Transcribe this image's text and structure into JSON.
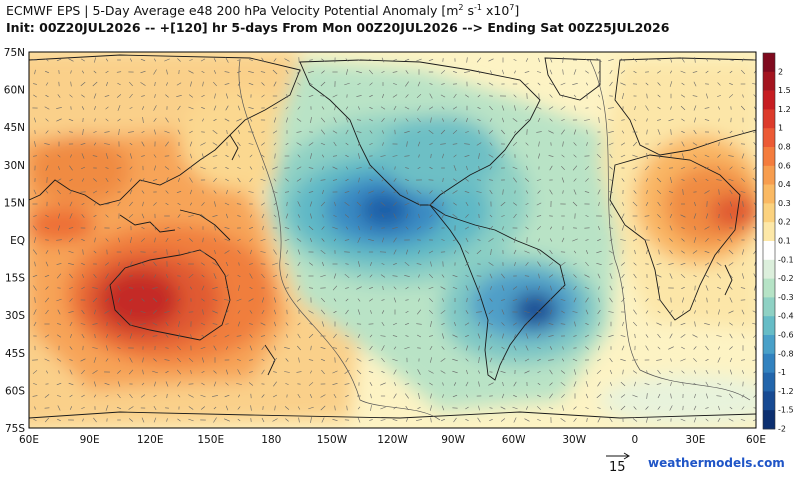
{
  "header": {
    "title_main": "ECMWF EPS | 5-Day Average e48 200 hPa Velocity Potential Anomaly [m",
    "title_unit_sup1": "2",
    "title_unit_mid": " s",
    "title_unit_sup2": "-1",
    "title_unit_x": " x10",
    "title_unit_sup3": "7",
    "title_close": "]",
    "subtitle": "Init: 00Z20JUL2026 -- +[120] hr   5-days From Mon 00Z20JUL2026 --> Ending Sat 00Z25JUL2026"
  },
  "map": {
    "lat_labels": [
      "75N",
      "60N",
      "45N",
      "30N",
      "15N",
      "EQ",
      "15S",
      "30S",
      "45S",
      "60S",
      "75S"
    ],
    "lon_labels": [
      "60E",
      "90E",
      "120E",
      "150E",
      "180",
      "150W",
      "120W",
      "90W",
      "60W",
      "30W",
      "0",
      "30E",
      "60E"
    ],
    "colorbar": {
      "labels": [
        "2",
        "1.5",
        "1.2",
        "1",
        "0.8",
        "0.6",
        "0.4",
        "0.3",
        "0.2",
        "0.1",
        "-0.1",
        "-0.2",
        "-0.3",
        "-0.4",
        "-0.6",
        "-0.8",
        "-1",
        "-1.2",
        "-1.5",
        "-2"
      ],
      "colors": [
        "#7f0a1e",
        "#a3141f",
        "#c61d22",
        "#dc3b2b",
        "#ec5a35",
        "#f47c3d",
        "#f79d4e",
        "#fab963",
        "#fbd27f",
        "#fde8a8",
        "#ffffff",
        "#dcefdc",
        "#b6e3c6",
        "#8fd1c4",
        "#66bcc6",
        "#49a0c8",
        "#3282bf",
        "#2265ab",
        "#174a93",
        "#0c2f70"
      ]
    },
    "reference_vector": "15",
    "brand": "weathermodels.com"
  }
}
